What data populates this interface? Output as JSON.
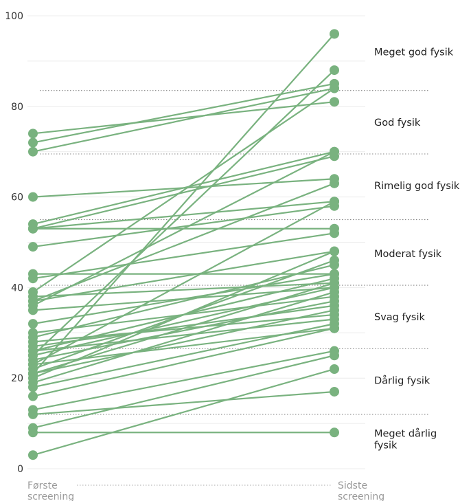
{
  "chart_data": {
    "type": "line",
    "categories": [
      "Første screening",
      "Sidste screening"
    ],
    "x_labels": [
      [
        "Første",
        "screening"
      ],
      [
        "Sidste",
        "screening"
      ]
    ],
    "ylim": [
      0,
      100
    ],
    "y_ticks": [
      0,
      20,
      40,
      60,
      80,
      100
    ],
    "grid": true,
    "colors": {
      "series": "#79b27f",
      "grid": "#ececec",
      "threshold": "#888888"
    },
    "bands": [
      {
        "label_lines": [
          "Meget god fysik"
        ],
        "center": 92,
        "lower": 83.5
      },
      {
        "label_lines": [
          "God fysik"
        ],
        "center": 76.5,
        "lower": 69.5
      },
      {
        "label_lines": [
          "Rimelig god fysik"
        ],
        "center": 62.5,
        "lower": 55
      },
      {
        "label_lines": [
          "Moderat fysik"
        ],
        "center": 47.5,
        "lower": 40.5
      },
      {
        "label_lines": [
          "Svag fysik"
        ],
        "center": 33.5,
        "lower": 26.5
      },
      {
        "label_lines": [
          "Dårlig fysik"
        ],
        "center": 19.5,
        "lower": 12
      },
      {
        "label_lines": [
          "Meget dårlig",
          "fysik"
        ],
        "center": 6.5,
        "lower": null
      }
    ],
    "pairs": [
      [
        74,
        81
      ],
      [
        72,
        85
      ],
      [
        70,
        84
      ],
      [
        60,
        64
      ],
      [
        54,
        70
      ],
      [
        53,
        69
      ],
      [
        53,
        59
      ],
      [
        53,
        53
      ],
      [
        49,
        58
      ],
      [
        43,
        43
      ],
      [
        42,
        52
      ],
      [
        39,
        84
      ],
      [
        38,
        41
      ],
      [
        37,
        63
      ],
      [
        37,
        48
      ],
      [
        36,
        70
      ],
      [
        35,
        40
      ],
      [
        32,
        43
      ],
      [
        30,
        38
      ],
      [
        29,
        45
      ],
      [
        28,
        34
      ],
      [
        27,
        36
      ],
      [
        26,
        42
      ],
      [
        26,
        33
      ],
      [
        25,
        88
      ],
      [
        25,
        40
      ],
      [
        24,
        37
      ],
      [
        23,
        59
      ],
      [
        23,
        31
      ],
      [
        22,
        46
      ],
      [
        21,
        41
      ],
      [
        21,
        35
      ],
      [
        20,
        48
      ],
      [
        19,
        39
      ],
      [
        18,
        32
      ],
      [
        16,
        31
      ],
      [
        13,
        26
      ],
      [
        12,
        17
      ],
      [
        9,
        25
      ],
      [
        8,
        8
      ],
      [
        3,
        22
      ],
      [
        21,
        96
      ]
    ]
  }
}
